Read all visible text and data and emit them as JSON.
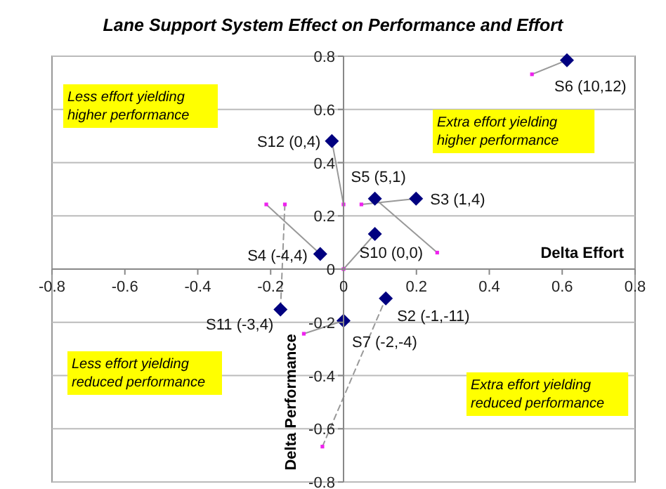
{
  "chart_data": {
    "type": "scatter",
    "title": "Lane Support System Effect on Performance and Effort",
    "xlabel": "Delta Effort",
    "ylabel": "Delta Performance",
    "xlim": [
      -0.8,
      0.8
    ],
    "xticks": [
      -0.8,
      -0.6,
      -0.4,
      -0.2,
      0,
      0.2,
      0.4,
      0.6,
      0.8
    ],
    "ylim": [
      -0.8,
      0.8
    ],
    "yticks": [
      -0.8,
      -0.6,
      -0.4,
      -0.2,
      0,
      0.2,
      0.4,
      0.6,
      0.8
    ],
    "grid": "y",
    "series": [
      {
        "type": "line",
        "color": "#999999",
        "line_style": "solid",
        "marker": "none",
        "x": [
          0.517,
          0.613
        ],
        "values": [
          0.732,
          0.785
        ]
      },
      {
        "type": "line",
        "color": "#999999",
        "line_style": "solid",
        "marker": "none",
        "x": [
          0,
          -0.032
        ],
        "values": [
          0.243,
          0.481
        ]
      },
      {
        "type": "line",
        "color": "#999999",
        "line_style": "solid",
        "marker": "none",
        "x": [
          0.257,
          0.086
        ],
        "values": [
          0.062,
          0.265
        ]
      },
      {
        "type": "line",
        "color": "#999999",
        "line_style": "solid",
        "marker": "none",
        "x": [
          0.049,
          0.199
        ],
        "values": [
          0.243,
          0.265
        ]
      },
      {
        "type": "line",
        "color": "#999999",
        "line_style": "solid",
        "marker": "none",
        "x": [
          0,
          0.086
        ],
        "values": [
          0,
          0.132
        ]
      },
      {
        "type": "line",
        "color": "#999999",
        "line_style": "solid",
        "marker": "none",
        "x": [
          -0.212,
          -0.064
        ],
        "values": [
          0.243,
          0.057
        ]
      },
      {
        "type": "line",
        "color": "#999999",
        "line_style": "dashed",
        "marker": "none",
        "x": [
          -0.161,
          -0.173
        ],
        "values": [
          0.243,
          -0.152
        ]
      },
      {
        "type": "line",
        "color": "#999999",
        "line_style": "solid",
        "marker": "none",
        "x": [
          -0.109,
          0
        ],
        "values": [
          -0.243,
          -0.194
        ]
      },
      {
        "type": "line",
        "color": "#999999",
        "line_style": "dashed",
        "marker": "none",
        "x": [
          -0.058,
          0.116
        ],
        "values": [
          -0.667,
          -0.11
        ]
      },
      {
        "color": "#ee22ee",
        "marker": "square",
        "x": [
          0.517,
          0,
          0.257,
          0.049,
          0,
          -0.212,
          -0.161,
          -0.109,
          -0.058
        ],
        "values": [
          0.732,
          0.243,
          0.062,
          0.243,
          0,
          0.243,
          0.243,
          -0.243,
          -0.667
        ]
      },
      {
        "color": "#000080",
        "marker": "diamond",
        "x": [
          0.613,
          -0.032,
          0.086,
          0.199,
          0.086,
          -0.064,
          -0.173,
          0,
          0.116
        ],
        "values": [
          0.785,
          0.481,
          0.265,
          0.265,
          0.132,
          0.057,
          -0.152,
          -0.194,
          -0.11
        ]
      }
    ],
    "annotations": [
      {
        "text": "S6 (10,12)",
        "x": 0.613,
        "y": 0.785
      },
      {
        "text": "S12 (0,4)",
        "x": -0.032,
        "y": 0.481
      },
      {
        "text": "S5 (5,1)",
        "x": 0.086,
        "y": 0.265
      },
      {
        "text": "S3 (1,4)",
        "x": 0.199,
        "y": 0.265
      },
      {
        "text": "S10 (0,0)",
        "x": 0.086,
        "y": 0.132
      },
      {
        "text": "S4 (-4,4)",
        "x": -0.064,
        "y": 0.057
      },
      {
        "text": "S11 (-3,4)",
        "x": -0.173,
        "y": -0.152
      },
      {
        "text": "S7 (-2,-4)",
        "x": 0,
        "y": -0.194
      },
      {
        "text": "S2 (-1,-11)",
        "x": 0.116,
        "y": -0.11
      },
      "Less effort yielding higher performance",
      "Extra effort yielding higher performance",
      "Less effort yielding reduced performance",
      "Extra effort yielding reduced performance"
    ]
  }
}
